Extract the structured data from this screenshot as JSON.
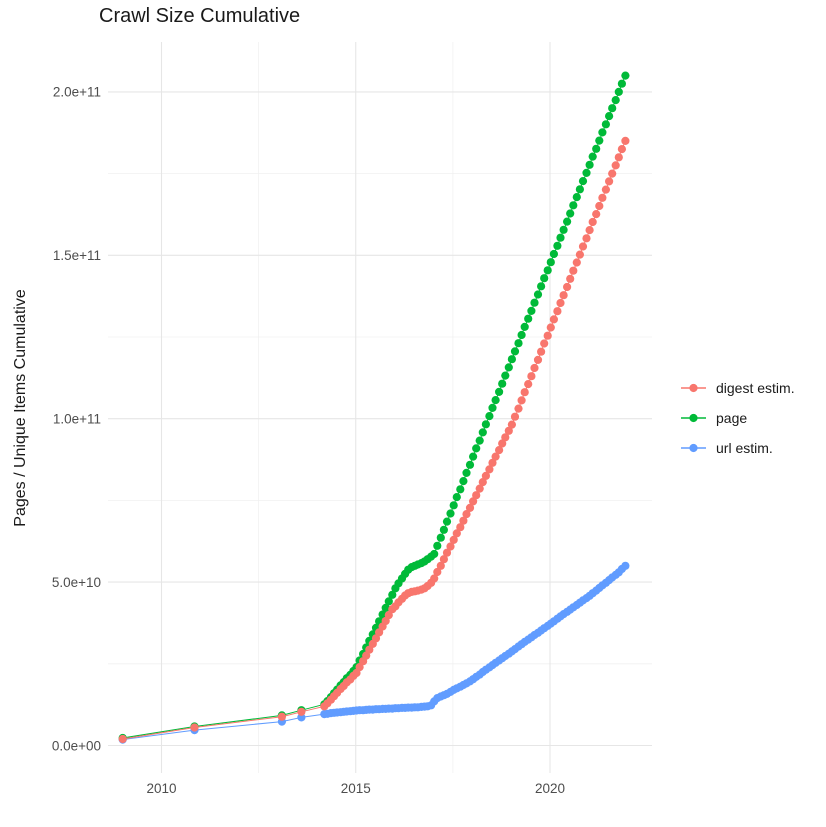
{
  "chart_data": {
    "type": "scatter",
    "title": "Crawl Size Cumulative",
    "xlabel": "",
    "ylabel": "Pages / Unique Items Cumulative",
    "legend_position": "right",
    "grid": "on",
    "value_unit_multiplier": 1000000000.0,
    "x_axis": {
      "ticks": [
        {
          "value": 2010,
          "label": "2010"
        },
        {
          "value": 2015,
          "label": "2015"
        },
        {
          "value": 2020,
          "label": "2020"
        }
      ],
      "minor": [
        2012.5,
        2017.5
      ],
      "range": [
        2008.35,
        2022.6
      ]
    },
    "y_axis": {
      "ticks": [
        {
          "value": 0,
          "label": "0.0e+00"
        },
        {
          "value": 50,
          "label": "5.0e+10"
        },
        {
          "value": 100,
          "label": "1.0e+11"
        },
        {
          "value": 150,
          "label": "1.5e+11"
        },
        {
          "value": 200,
          "label": "2.0e+11"
        }
      ],
      "minor": [
        25,
        75,
        125,
        175
      ],
      "range_e9": [
        -8,
        215
      ]
    },
    "x": [
      2009.0,
      2010.85,
      2013.1,
      2013.6,
      2014.19,
      2014.27,
      2014.36,
      2014.44,
      2014.52,
      2014.61,
      2014.69,
      2014.77,
      2014.86,
      2014.94,
      2015.02,
      2015.1,
      2015.19,
      2015.27,
      2015.35,
      2015.44,
      2015.52,
      2015.6,
      2015.69,
      2015.77,
      2015.85,
      2015.94,
      2016.02,
      2016.1,
      2016.19,
      2016.27,
      2016.35,
      2016.44,
      2016.52,
      2016.6,
      2016.69,
      2016.77,
      2016.85,
      2016.94,
      2017.02,
      2017.1,
      2017.19,
      2017.27,
      2017.35,
      2017.44,
      2017.52,
      2017.6,
      2017.69,
      2017.77,
      2017.85,
      2017.94,
      2018.02,
      2018.1,
      2018.19,
      2018.27,
      2018.35,
      2018.44,
      2018.52,
      2018.6,
      2018.69,
      2018.77,
      2018.85,
      2018.94,
      2019.02,
      2019.1,
      2019.19,
      2019.27,
      2019.35,
      2019.44,
      2019.52,
      2019.6,
      2019.69,
      2019.77,
      2019.85,
      2019.94,
      2020.02,
      2020.1,
      2020.19,
      2020.27,
      2020.35,
      2020.44,
      2020.52,
      2020.6,
      2020.69,
      2020.77,
      2020.85,
      2020.94,
      2021.02,
      2021.1,
      2021.19,
      2021.27,
      2021.35,
      2021.44,
      2021.52,
      2021.6,
      2021.69,
      2021.77,
      2021.85,
      2021.94
    ],
    "series": [
      {
        "name": "digest estim.",
        "color": "#F8766D",
        "values_e9": [
          2.0,
          5.5,
          8.8,
          10.3,
          12.0,
          12.9,
          14.0,
          15.1,
          16.1,
          17.3,
          18.2,
          19.3,
          20.2,
          21.3,
          22.2,
          24.0,
          25.8,
          27.5,
          29.3,
          31.1,
          32.8,
          34.6,
          36.4,
          38.1,
          39.9,
          41.7,
          42.6,
          43.8,
          44.9,
          45.9,
          46.6,
          47.0,
          47.2,
          47.4,
          47.7,
          48.1,
          48.8,
          49.8,
          51.1,
          53.1,
          55.0,
          57.0,
          59.0,
          60.9,
          62.9,
          64.9,
          66.8,
          68.8,
          70.8,
          72.7,
          74.7,
          76.6,
          78.6,
          80.6,
          82.5,
          84.5,
          86.5,
          88.4,
          90.4,
          92.4,
          94.3,
          96.3,
          98.2,
          100.6,
          103.1,
          105.6,
          108.1,
          110.6,
          113.0,
          115.5,
          118.0,
          120.5,
          123.0,
          125.4,
          127.9,
          130.4,
          132.9,
          135.4,
          137.8,
          140.3,
          142.8,
          145.3,
          147.8,
          150.2,
          152.7,
          155.2,
          157.7,
          160.2,
          162.6,
          165.1,
          167.6,
          170.1,
          172.6,
          175.0,
          177.5,
          180.0,
          182.5,
          185.0
        ]
      },
      {
        "name": "page",
        "color": "#00BA38",
        "values_e9": [
          2.3,
          5.8,
          9.2,
          10.8,
          12.6,
          13.6,
          14.8,
          16.0,
          17.1,
          18.4,
          19.4,
          20.6,
          21.6,
          22.8,
          24.0,
          26.0,
          28.0,
          30.0,
          32.0,
          34.0,
          36.0,
          38.0,
          40.1,
          42.1,
          44.1,
          46.1,
          48.1,
          49.6,
          51.1,
          52.5,
          53.8,
          54.6,
          55.0,
          55.4,
          55.8,
          56.3,
          57.0,
          57.8,
          58.6,
          61.1,
          63.6,
          66.0,
          68.5,
          71.0,
          73.5,
          76.0,
          78.4,
          80.9,
          83.4,
          85.9,
          88.4,
          90.9,
          93.3,
          95.8,
          98.3,
          100.8,
          103.3,
          105.7,
          108.2,
          110.7,
          113.2,
          115.7,
          118.2,
          120.6,
          123.1,
          125.6,
          128.1,
          130.6,
          133.0,
          135.5,
          138.0,
          140.5,
          143.0,
          145.4,
          147.9,
          150.4,
          152.9,
          155.4,
          157.8,
          160.3,
          162.8,
          165.3,
          167.8,
          170.2,
          172.7,
          175.2,
          177.7,
          180.2,
          182.6,
          185.1,
          187.6,
          190.1,
          192.6,
          195.0,
          197.5,
          200.0,
          202.5,
          205.0
        ]
      },
      {
        "name": "url estim.",
        "color": "#619CFF",
        "values_e9": [
          1.8,
          4.7,
          7.3,
          8.6,
          9.6,
          9.7,
          9.9,
          10.0,
          10.1,
          10.2,
          10.3,
          10.4,
          10.5,
          10.6,
          10.7,
          10.8,
          10.8,
          10.9,
          11.0,
          11.0,
          11.1,
          11.1,
          11.2,
          11.2,
          11.3,
          11.3,
          11.4,
          11.4,
          11.5,
          11.5,
          11.6,
          11.6,
          11.7,
          11.7,
          11.8,
          11.9,
          12.0,
          12.3,
          13.5,
          14.5,
          15.0,
          15.4,
          15.8,
          16.4,
          17.0,
          17.5,
          18.0,
          18.5,
          19.0,
          19.6,
          20.3,
          21.0,
          21.7,
          22.5,
          23.2,
          23.9,
          24.6,
          25.3,
          26.0,
          26.7,
          27.4,
          28.1,
          28.8,
          29.5,
          30.3,
          31.0,
          31.7,
          32.4,
          33.1,
          33.8,
          34.5,
          35.2,
          35.9,
          36.6,
          37.3,
          38.0,
          38.8,
          39.5,
          40.2,
          40.9,
          41.6,
          42.3,
          43.0,
          43.7,
          44.4,
          45.1,
          45.8,
          46.6,
          47.4,
          48.2,
          49.0,
          49.8,
          50.6,
          51.4,
          52.2,
          53.0,
          54.0,
          55.0
        ]
      }
    ],
    "style": {
      "background": "#FFFFFF",
      "grid_major_color": "#E6E6E6",
      "grid_minor_color": "#F0F0F0",
      "tick_label_color": "#4D4D4D",
      "text_color": "#1A1A1A",
      "point_radius": 4.1
    }
  }
}
